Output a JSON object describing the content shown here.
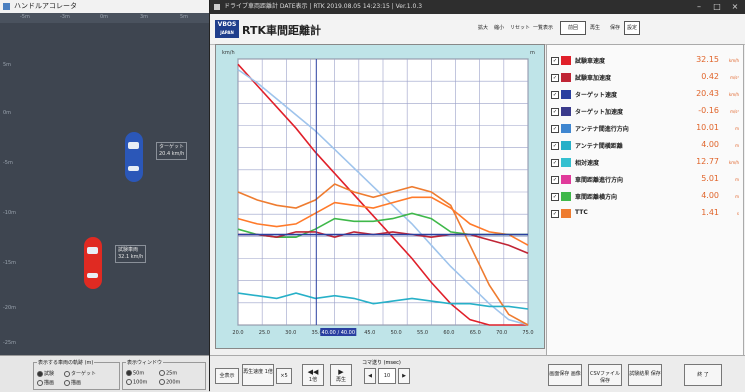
{
  "left_window": {
    "title": "ハンドルアコレータ",
    "top_ticks": [
      "-5m",
      "-3m",
      "0m",
      "3m",
      "5m"
    ],
    "side_ticks": [
      "5m",
      "0m",
      "-5m",
      "-10m",
      "-15m",
      "-20m",
      "-25m"
    ],
    "car_blue_label": [
      "ターゲット",
      "20.4 km/h"
    ],
    "car_red_label": [
      "試験車両",
      "32.1 km/h"
    ],
    "bottom": {
      "group1_title": "表示する車両の軌跡 (m)",
      "group1_options": [
        "試験",
        "ターゲット",
        "描画",
        "描画"
      ],
      "group2_title": "表示ウィンドウ",
      "group2_options": [
        "50m",
        "25m",
        "100m",
        "200m"
      ]
    }
  },
  "right_window": {
    "titlebar": "ドライブ車両距離計 DATE表示 | RTK 2019.08.05 14:23:15 | Ver.1.0.3",
    "logo_line1": "VBOS",
    "logo_line2": "JAPAN",
    "app_title": "RTK車間距離計",
    "toolbar": [
      "拡大",
      "縮小",
      "リセット",
      "一覧表示",
      "前回",
      "再生",
      "保存",
      "設定"
    ],
    "legend": [
      {
        "name": "試験車速度",
        "value": "32.15",
        "unit": "km/h",
        "color": "#e0202a"
      },
      {
        "name": "試験車加速度",
        "value": "0.42",
        "unit": "m/s²",
        "color": "#c02535"
      },
      {
        "name": "ターゲット速度",
        "value": "20.43",
        "unit": "km/h",
        "color": "#2a3fa0"
      },
      {
        "name": "ターゲット加速度",
        "value": "-0.16",
        "unit": "m/s²",
        "color": "#3b3b8c"
      },
      {
        "name": "アンテナ間進行方向",
        "value": "10.01",
        "unit": "m",
        "color": "#3f86d0"
      },
      {
        "name": "アンテナ間横距離",
        "value": "4.00",
        "unit": "m",
        "color": "#27b0c8"
      },
      {
        "name": "相対速度",
        "value": "12.77",
        "unit": "km/h",
        "color": "#35c0d0"
      },
      {
        "name": "車間距離進行方向",
        "value": "5.01",
        "unit": "m",
        "color": "#e03a9a"
      },
      {
        "name": "車間距離横方向",
        "value": "4.00",
        "unit": "m",
        "color": "#3fb84a"
      },
      {
        "name": "TTC",
        "value": "1.41",
        "unit": "s",
        "color": "#ee7c30"
      }
    ],
    "bottom": {
      "btn1": "全表示",
      "btn2": "再生速度 1倍",
      "btn3": "×5",
      "btn4": "1倍",
      "btn5": "再生",
      "step_label": "コマ送り (msec)",
      "step_value": "10",
      "btn_export1": "画面保存 画像",
      "btn_export2": "CSVファイル 保存",
      "btn_export3": "試験結果 保存",
      "btn_end": "終 了"
    }
  },
  "chart_data": {
    "type": "line",
    "x": [
      0,
      0.5,
      1,
      1.5,
      2,
      2.5,
      3,
      3.5,
      4,
      4.5,
      5,
      5.5,
      6,
      6.5,
      7,
      7.5
    ],
    "x_tick_labels": [
      "20.0",
      "25.0",
      "30.0",
      "35.0",
      "40.0",
      "45.0",
      "50.0",
      "55.0",
      "60.0",
      "65.0",
      "70.0",
      "75.0"
    ],
    "cursor_label": "40.00 / 40.00",
    "y_left_label": "km/h",
    "y_right_label": "m",
    "grid": true,
    "series": [
      {
        "name": "試験車速度",
        "color": "#e0202a",
        "values": [
          98,
          90,
          82,
          74,
          65,
          57,
          49,
          41,
          33,
          25,
          16,
          8,
          2,
          0,
          0,
          0
        ]
      },
      {
        "name": "アンテナ間進行方向",
        "color": "#9fc4ec",
        "values": [
          96,
          91,
          85,
          79,
          73,
          66,
          59,
          52,
          45,
          38,
          30,
          22,
          15,
          8,
          2,
          0
        ]
      },
      {
        "name": "TTC",
        "color": "#ee7c30",
        "values": [
          50,
          47,
          45,
          44,
          47,
          53,
          50,
          48,
          50,
          52,
          50,
          45,
          30,
          15,
          4,
          0
        ]
      },
      {
        "name": "車間距離進行方向",
        "color": "#ff7a2a",
        "values": [
          40,
          38,
          37,
          38,
          42,
          46,
          45,
          44,
          46,
          48,
          48,
          44,
          38,
          35,
          34,
          30
        ]
      },
      {
        "name": "車間距離横方向",
        "color": "#3fb84a",
        "values": [
          36,
          34,
          33,
          33,
          36,
          40,
          39,
          39,
          40,
          42,
          40,
          35,
          34,
          34,
          34,
          34
        ]
      },
      {
        "name": "試験車加速度",
        "color": "#c02535",
        "values": [
          34,
          34,
          33,
          35,
          35,
          33,
          35,
          34,
          35,
          34,
          33,
          34,
          34,
          32,
          30,
          27
        ]
      },
      {
        "name": "ターゲット速度",
        "color": "#2a3fa0",
        "values": [
          34,
          34,
          34,
          34,
          34,
          34,
          34,
          34,
          34,
          34,
          34,
          34,
          34,
          34,
          34,
          34
        ]
      },
      {
        "name": "アンテナ間横距離",
        "color": "#27b0c8",
        "values": [
          12,
          11,
          10,
          12,
          10,
          11,
          10,
          8,
          9,
          10,
          9,
          8,
          8,
          7,
          7,
          6
        ]
      }
    ],
    "ylim": [
      0,
      100
    ]
  }
}
